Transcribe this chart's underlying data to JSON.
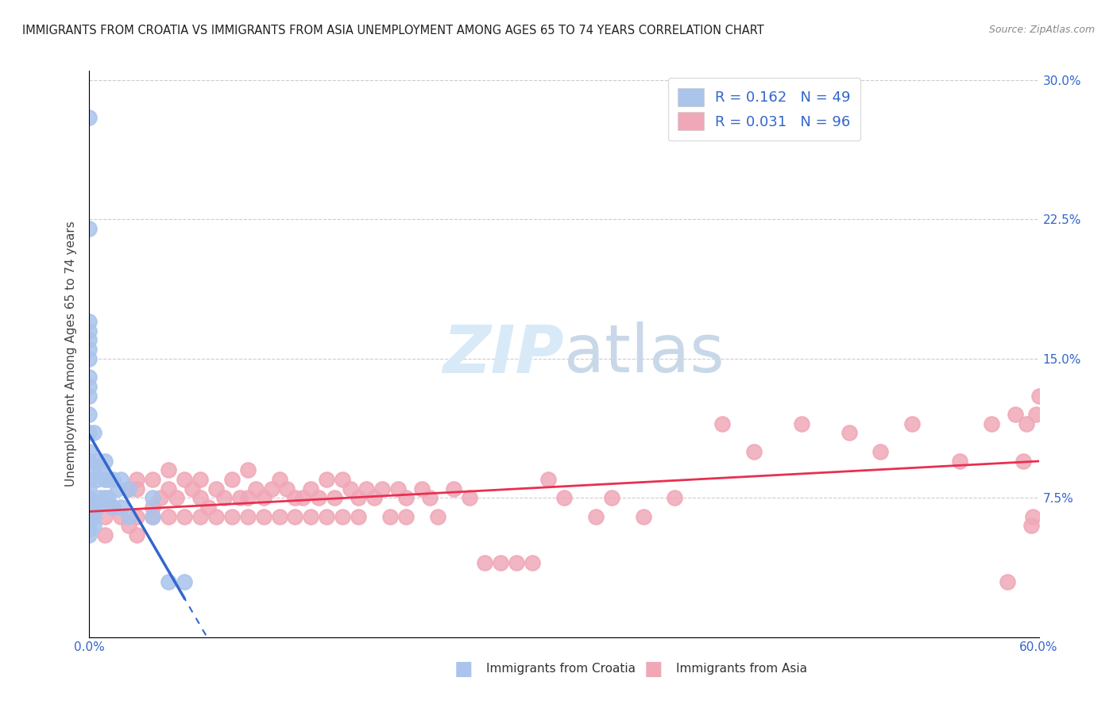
{
  "title": "IMMIGRANTS FROM CROATIA VS IMMIGRANTS FROM ASIA UNEMPLOYMENT AMONG AGES 65 TO 74 YEARS CORRELATION CHART",
  "source": "Source: ZipAtlas.com",
  "ylabel": "Unemployment Among Ages 65 to 74 years",
  "xlim": [
    0.0,
    0.6
  ],
  "ylim": [
    -0.005,
    0.305
  ],
  "xticks": [
    0.0,
    0.1,
    0.2,
    0.3,
    0.4,
    0.5,
    0.6
  ],
  "yticks": [
    0.0,
    0.075,
    0.15,
    0.225,
    0.3
  ],
  "R_croatia": 0.162,
  "N_croatia": 49,
  "R_asia": 0.031,
  "N_asia": 96,
  "color_croatia": "#aac4ec",
  "color_asia": "#f0a8b8",
  "trendline_croatia": "#3366cc",
  "trendline_asia": "#e83050",
  "croatia_x": [
    0.0,
    0.0,
    0.0,
    0.0,
    0.0,
    0.0,
    0.0,
    0.0,
    0.0,
    0.0,
    0.0,
    0.0,
    0.0,
    0.0,
    0.0,
    0.0,
    0.0,
    0.0,
    0.0,
    0.0,
    0.0,
    0.0,
    0.0,
    0.003,
    0.003,
    0.003,
    0.003,
    0.003,
    0.005,
    0.005,
    0.005,
    0.007,
    0.007,
    0.01,
    0.01,
    0.01,
    0.012,
    0.012,
    0.015,
    0.015,
    0.018,
    0.02,
    0.02,
    0.025,
    0.025,
    0.04,
    0.04,
    0.05,
    0.06
  ],
  "croatia_y": [
    0.28,
    0.22,
    0.17,
    0.165,
    0.16,
    0.155,
    0.15,
    0.14,
    0.135,
    0.13,
    0.12,
    0.11,
    0.1,
    0.095,
    0.085,
    0.08,
    0.075,
    0.072,
    0.068,
    0.065,
    0.062,
    0.058,
    0.055,
    0.11,
    0.09,
    0.07,
    0.065,
    0.06,
    0.095,
    0.085,
    0.07,
    0.09,
    0.075,
    0.095,
    0.085,
    0.075,
    0.085,
    0.075,
    0.085,
    0.07,
    0.08,
    0.085,
    0.07,
    0.08,
    0.065,
    0.075,
    0.065,
    0.03,
    0.03
  ],
  "asia_x": [
    0.0,
    0.0,
    0.005,
    0.01,
    0.01,
    0.015,
    0.02,
    0.025,
    0.025,
    0.03,
    0.03,
    0.03,
    0.03,
    0.04,
    0.04,
    0.04,
    0.045,
    0.05,
    0.05,
    0.05,
    0.055,
    0.06,
    0.06,
    0.065,
    0.07,
    0.07,
    0.07,
    0.075,
    0.08,
    0.08,
    0.085,
    0.09,
    0.09,
    0.095,
    0.1,
    0.1,
    0.1,
    0.105,
    0.11,
    0.11,
    0.115,
    0.12,
    0.12,
    0.125,
    0.13,
    0.13,
    0.135,
    0.14,
    0.14,
    0.145,
    0.15,
    0.15,
    0.155,
    0.16,
    0.16,
    0.165,
    0.17,
    0.17,
    0.175,
    0.18,
    0.185,
    0.19,
    0.195,
    0.2,
    0.2,
    0.21,
    0.215,
    0.22,
    0.23,
    0.24,
    0.25,
    0.26,
    0.27,
    0.28,
    0.29,
    0.3,
    0.32,
    0.33,
    0.35,
    0.37,
    0.4,
    0.42,
    0.45,
    0.48,
    0.5,
    0.52,
    0.55,
    0.57,
    0.58,
    0.585,
    0.59,
    0.595,
    0.592,
    0.596,
    0.598,
    0.6
  ],
  "asia_y": [
    0.075,
    0.065,
    0.07,
    0.065,
    0.055,
    0.07,
    0.065,
    0.08,
    0.06,
    0.085,
    0.065,
    0.055,
    0.08,
    0.085,
    0.07,
    0.065,
    0.075,
    0.09,
    0.08,
    0.065,
    0.075,
    0.085,
    0.065,
    0.08,
    0.075,
    0.065,
    0.085,
    0.07,
    0.08,
    0.065,
    0.075,
    0.085,
    0.065,
    0.075,
    0.09,
    0.075,
    0.065,
    0.08,
    0.075,
    0.065,
    0.08,
    0.085,
    0.065,
    0.08,
    0.075,
    0.065,
    0.075,
    0.08,
    0.065,
    0.075,
    0.085,
    0.065,
    0.075,
    0.085,
    0.065,
    0.08,
    0.075,
    0.065,
    0.08,
    0.075,
    0.08,
    0.065,
    0.08,
    0.075,
    0.065,
    0.08,
    0.075,
    0.065,
    0.08,
    0.075,
    0.04,
    0.04,
    0.04,
    0.04,
    0.085,
    0.075,
    0.065,
    0.075,
    0.065,
    0.075,
    0.115,
    0.1,
    0.115,
    0.11,
    0.1,
    0.115,
    0.095,
    0.115,
    0.03,
    0.12,
    0.095,
    0.06,
    0.115,
    0.065,
    0.12,
    0.13
  ]
}
